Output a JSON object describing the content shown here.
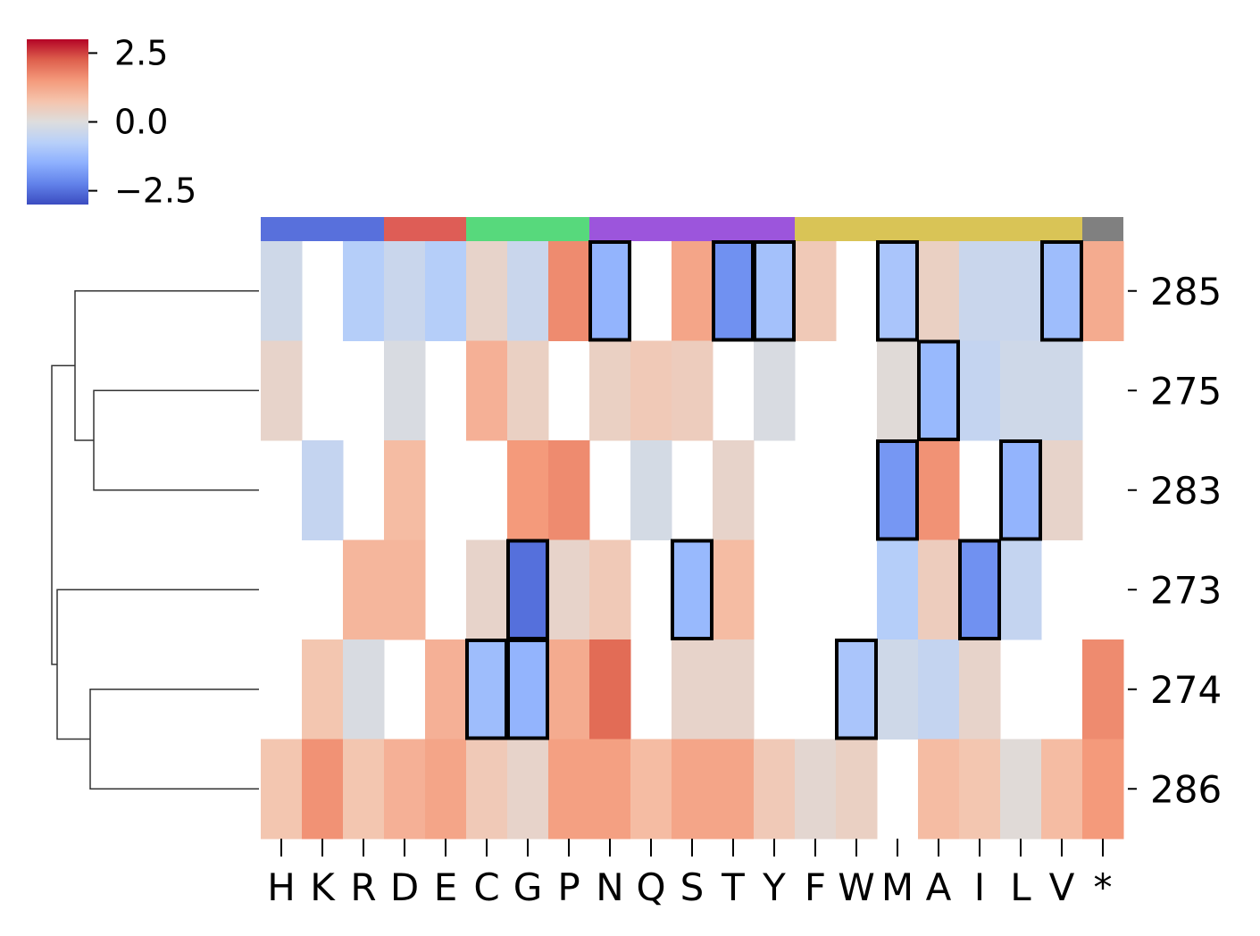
{
  "chart_data": {
    "type": "heatmap",
    "title": "",
    "xlabel": "",
    "ylabel": "",
    "columns": [
      "H",
      "K",
      "R",
      "D",
      "E",
      "C",
      "G",
      "P",
      "N",
      "Q",
      "S",
      "T",
      "Y",
      "F",
      "W",
      "M",
      "A",
      "I",
      "L",
      "V",
      "*"
    ],
    "rows": [
      "285",
      "275",
      "283",
      "273",
      "274",
      "286"
    ],
    "values": [
      [
        -0.3,
        null,
        -0.8,
        -0.4,
        -0.8,
        0.3,
        -0.4,
        1.7,
        -1.4,
        null,
        1.3,
        -2.0,
        -1.1,
        0.6,
        null,
        -1.0,
        0.4,
        -0.4,
        -0.4,
        -1.2,
        1.2
      ],
      [
        0.3,
        null,
        null,
        -0.1,
        null,
        1.1,
        0.4,
        null,
        0.4,
        0.6,
        0.5,
        null,
        -0.1,
        null,
        null,
        0.1,
        -1.3,
        -0.5,
        -0.3,
        -0.3,
        null
      ],
      [
        null,
        -0.5,
        null,
        0.9,
        null,
        null,
        1.5,
        1.7,
        null,
        -0.2,
        null,
        0.3,
        null,
        null,
        null,
        -1.9,
        1.6,
        null,
        -1.4,
        0.3,
        null
      ],
      [
        null,
        null,
        1.0,
        1.0,
        null,
        0.3,
        -2.5,
        0.3,
        0.6,
        null,
        -1.3,
        0.9,
        null,
        null,
        null,
        -0.8,
        0.5,
        -2.0,
        -0.5,
        null,
        null
      ],
      [
        null,
        0.7,
        -0.1,
        null,
        1.1,
        -1.2,
        -1.4,
        1.2,
        2.1,
        null,
        0.3,
        0.3,
        null,
        null,
        -1.0,
        -0.3,
        -0.5,
        0.3,
        null,
        null,
        1.7
      ],
      [
        0.7,
        1.6,
        0.7,
        1.1,
        1.3,
        0.6,
        0.3,
        1.4,
        1.4,
        0.9,
        1.3,
        1.3,
        0.6,
        0.2,
        0.4,
        null,
        0.9,
        0.7,
        0.1,
        0.9,
        1.5
      ]
    ],
    "highlighted": [
      [
        "285",
        "N"
      ],
      [
        "285",
        "T"
      ],
      [
        "285",
        "Y"
      ],
      [
        "285",
        "M"
      ],
      [
        "285",
        "V"
      ],
      [
        "275",
        "A"
      ],
      [
        "283",
        "M"
      ],
      [
        "283",
        "L"
      ],
      [
        "273",
        "G"
      ],
      [
        "273",
        "S"
      ],
      [
        "273",
        "I"
      ],
      [
        "274",
        "C"
      ],
      [
        "274",
        "G"
      ],
      [
        "274",
        "W"
      ]
    ],
    "colorbar": {
      "colormap": "coolwarm",
      "range": [
        -3.0,
        3.0
      ],
      "ticks": [
        2.5,
        0.0,
        -2.5
      ],
      "tick_labels": [
        "2.5",
        "0.0",
        "−2.5"
      ]
    },
    "column_groups": [
      {
        "members": [
          "H",
          "K",
          "R"
        ],
        "color": "#5870dc"
      },
      {
        "members": [
          "D",
          "E"
        ],
        "color": "#de5d56"
      },
      {
        "members": [
          "C",
          "G",
          "P"
        ],
        "color": "#57d97c"
      },
      {
        "members": [
          "N",
          "Q",
          "S",
          "T",
          "Y"
        ],
        "color": "#9c55dc"
      },
      {
        "members": [
          "F",
          "W",
          "M",
          "A",
          "I",
          "L",
          "V"
        ],
        "color": "#d9c456"
      },
      {
        "members": [
          "*"
        ],
        "color": "#808080"
      }
    ],
    "row_dendrogram": true,
    "grid": false
  }
}
